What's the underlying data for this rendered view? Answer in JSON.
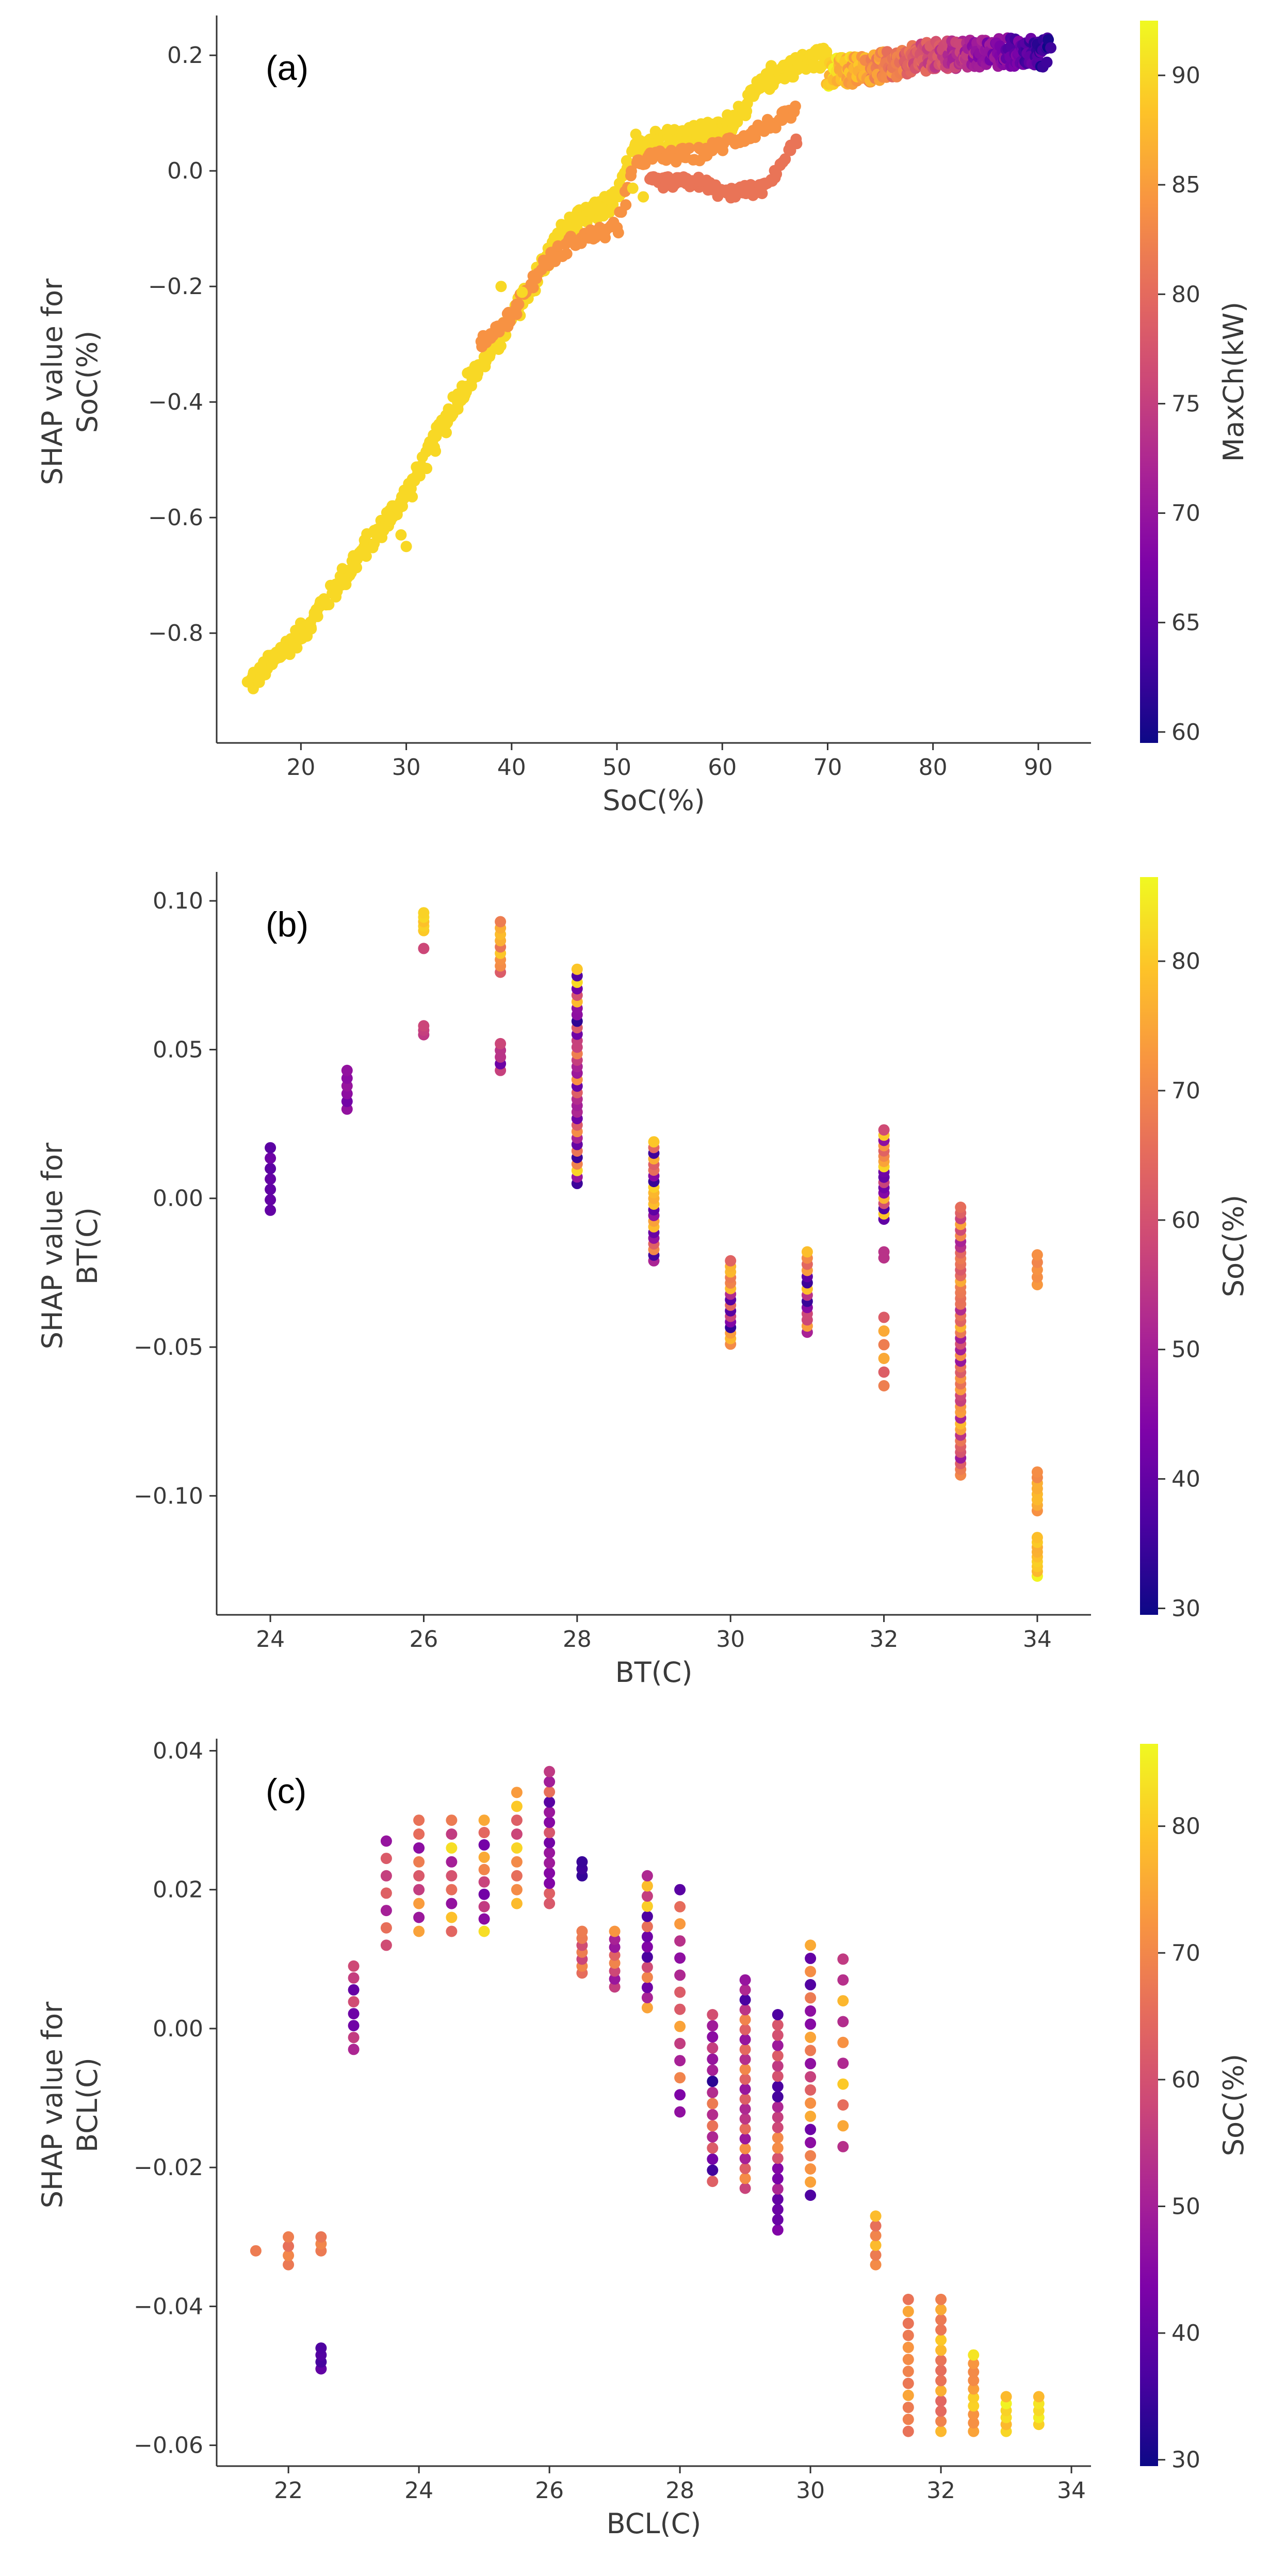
{
  "chart_data": [
    {
      "type": "scatter",
      "panel_label": "(a)",
      "xlabel": "SoC(%)",
      "ylabel_lines": [
        "SHAP value for",
        "SoC(%)"
      ],
      "colorbar_label": "MaxCh(kW)",
      "xlim": [
        12,
        95
      ],
      "ylim": [
        -0.99,
        0.26
      ],
      "xticks": [
        20,
        30,
        40,
        50,
        60,
        70,
        80,
        90
      ],
      "xtick_labels": [
        "20",
        "30",
        "40",
        "50",
        "60",
        "70",
        "80",
        "90"
      ],
      "yticks": [
        -0.8,
        -0.6,
        -0.4,
        -0.2,
        0.0,
        0.2
      ],
      "ytick_labels": [
        "−0.8",
        "−0.6",
        "−0.4",
        "−0.2",
        "0.0",
        "0.2"
      ],
      "clim": [
        59.5,
        92.5
      ],
      "cticks": [
        60,
        65,
        70,
        75,
        80,
        85,
        90
      ],
      "ctick_labels": [
        "60",
        "65",
        "70",
        "75",
        "80",
        "85",
        "90"
      ],
      "point_groups": [
        {
          "kind": "line",
          "x_range": [
            15,
            70
          ],
          "knots": [
            [
              15,
              -0.89
            ],
            [
              20,
              -0.8
            ],
            [
              25,
              -0.68
            ],
            [
              30,
              -0.56
            ],
            [
              35,
              -0.39
            ],
            [
              40,
              -0.26
            ],
            [
              45,
              -0.1
            ],
            [
              50,
              -0.05
            ],
            [
              52,
              0.05
            ],
            [
              60,
              0.07
            ],
            [
              65,
              0.17
            ],
            [
              70,
              0.2
            ]
          ],
          "c": 90,
          "jitter": 0.018,
          "n": 520
        },
        {
          "kind": "line",
          "x_range": [
            70,
            91
          ],
          "knots": [
            [
              70,
              0.17
            ],
            [
              75,
              0.18
            ],
            [
              80,
              0.2
            ],
            [
              85,
              0.205
            ],
            [
              91,
              0.205
            ]
          ],
          "c_range": [
            90,
            62
          ],
          "jitter": 0.025,
          "n": 360
        },
        {
          "kind": "line",
          "x_range": [
            37,
            67
          ],
          "knots": [
            [
              37,
              -0.3
            ],
            [
              40,
              -0.25
            ],
            [
              43,
              -0.16
            ],
            [
              46,
              -0.12
            ],
            [
              50,
              -0.1
            ],
            [
              52,
              0.02
            ],
            [
              58,
              0.03
            ],
            [
              62,
              0.06
            ],
            [
              67,
              0.1
            ]
          ],
          "c": 84,
          "jitter": 0.012,
          "n": 160
        },
        {
          "kind": "line",
          "x_range": [
            53,
            67
          ],
          "knots": [
            [
              53,
              -0.02
            ],
            [
              58,
              -0.02
            ],
            [
              60,
              -0.04
            ],
            [
              64,
              -0.03
            ],
            [
              67,
              0.05
            ]
          ],
          "c": 81,
          "jitter": 0.01,
          "n": 90
        },
        {
          "kind": "points",
          "points": [
            [
              28.5,
              -0.6
            ],
            [
              29.5,
              -0.63
            ],
            [
              30,
              -0.65
            ],
            [
              39,
              -0.2
            ],
            [
              41,
              -0.21
            ],
            [
              52.5,
              -0.045
            ],
            [
              51.5,
              -0.03
            ]
          ],
          "c": 90
        }
      ]
    },
    {
      "type": "scatter",
      "panel_label": "(b)",
      "xlabel": "BT(C)",
      "ylabel_lines": [
        "SHAP value for",
        "BT(C)"
      ],
      "colorbar_label": "SoC(%)",
      "xlim": [
        23.3,
        34.7
      ],
      "ylim": [
        -0.14,
        0.108
      ],
      "xticks": [
        24,
        26,
        28,
        30,
        32,
        34
      ],
      "xtick_labels": [
        "24",
        "26",
        "28",
        "30",
        "32",
        "34"
      ],
      "yticks": [
        -0.1,
        -0.05,
        0.0,
        0.05,
        0.1
      ],
      "ytick_labels": [
        "−0.10",
        "−0.05",
        "0.00",
        "0.05",
        "0.10"
      ],
      "clim": [
        29.5,
        86.5
      ],
      "cticks": [
        30,
        40,
        50,
        60,
        70,
        80
      ],
      "ctick_labels": [
        "30",
        "40",
        "50",
        "60",
        "70",
        "80"
      ],
      "point_groups": [
        {
          "kind": "column",
          "x": 24,
          "y_range": [
            -0.004,
            0.017
          ],
          "c_range": [
            38,
            42
          ],
          "n": 7
        },
        {
          "kind": "column",
          "x": 25,
          "y_range": [
            0.03,
            0.043
          ],
          "c_range": [
            42,
            48
          ],
          "n": 6
        },
        {
          "kind": "column",
          "x": 26,
          "y_range": [
            0.09,
            0.096
          ],
          "c_range": [
            75,
            84
          ],
          "n": 5
        },
        {
          "kind": "column",
          "x": 26,
          "y_range": [
            0.055,
            0.058
          ],
          "c_range": [
            55,
            58
          ],
          "n": 3
        },
        {
          "kind": "points",
          "points": [
            [
              26,
              0.084
            ]
          ],
          "c": 58
        },
        {
          "kind": "column",
          "x": 27,
          "y_range": [
            0.076,
            0.093
          ],
          "c_range": [
            60,
            84
          ],
          "n": 9
        },
        {
          "kind": "column",
          "x": 27,
          "y_range": [
            0.043,
            0.052
          ],
          "c_range": [
            40,
            58
          ],
          "n": 5
        },
        {
          "kind": "column",
          "x": 28,
          "y_range": [
            0.005,
            0.077
          ],
          "c_range": [
            32,
            84
          ],
          "n": 34
        },
        {
          "kind": "column",
          "x": 29,
          "y_range": [
            -0.021,
            0.019
          ],
          "c_range": [
            34,
            82
          ],
          "n": 22
        },
        {
          "kind": "column",
          "x": 30,
          "y_range": [
            -0.049,
            -0.021
          ],
          "c_range": [
            32,
            80
          ],
          "n": 16
        },
        {
          "kind": "column",
          "x": 31,
          "y_range": [
            -0.045,
            -0.018
          ],
          "c_range": [
            34,
            80
          ],
          "n": 14
        },
        {
          "kind": "column",
          "x": 32,
          "y_range": [
            -0.007,
            0.023
          ],
          "c_range": [
            32,
            82
          ],
          "n": 18
        },
        {
          "kind": "column",
          "x": 32,
          "y_range": [
            -0.063,
            -0.04
          ],
          "c_range": [
            58,
            76
          ],
          "n": 6
        },
        {
          "kind": "points",
          "points": [
            [
              32,
              -0.018
            ],
            [
              32,
              -0.02
            ]
          ],
          "c": 54
        },
        {
          "kind": "column",
          "x": 33,
          "y_range": [
            -0.093,
            -0.003
          ],
          "c_range": [
            46,
            78
          ],
          "n": 48
        },
        {
          "kind": "column",
          "x": 34,
          "y_range": [
            -0.029,
            -0.019
          ],
          "c_range": [
            68,
            76
          ],
          "n": 5
        },
        {
          "kind": "column",
          "x": 34,
          "y_range": [
            -0.105,
            -0.092
          ],
          "c_range": [
            70,
            80
          ],
          "n": 8
        },
        {
          "kind": "column",
          "x": 34,
          "y_range": [
            -0.127,
            -0.114
          ],
          "c_range": [
            76,
            86
          ],
          "n": 9
        }
      ]
    },
    {
      "type": "scatter",
      "panel_label": "(c)",
      "xlabel": "BCL(C)",
      "ylabel_lines": [
        "SHAP value for",
        "BCL(C)"
      ],
      "colorbar_label": "SoC(%)",
      "xlim": [
        20.9,
        34.3
      ],
      "ylim": [
        -0.063,
        0.041
      ],
      "xticks": [
        22,
        24,
        26,
        28,
        30,
        32,
        34
      ],
      "xtick_labels": [
        "22",
        "24",
        "26",
        "28",
        "30",
        "32",
        "34"
      ],
      "yticks": [
        -0.06,
        -0.04,
        -0.02,
        0.0,
        0.02,
        0.04
      ],
      "ytick_labels": [
        "−0.06",
        "−0.04",
        "−0.02",
        "0.00",
        "0.02",
        "0.04"
      ],
      "clim": [
        29.5,
        86.5
      ],
      "cticks": [
        30,
        40,
        50,
        60,
        70,
        80
      ],
      "ctick_labels": [
        "30",
        "40",
        "50",
        "60",
        "70",
        "80"
      ],
      "point_groups": [
        {
          "kind": "points",
          "points": [
            [
              21.5,
              -0.032
            ]
          ],
          "c": 68
        },
        {
          "kind": "column",
          "x": 22,
          "y_range": [
            -0.034,
            -0.03
          ],
          "c_range": [
            66,
            70
          ],
          "n": 4
        },
        {
          "kind": "column",
          "x": 22.5,
          "y_range": [
            -0.032,
            -0.03
          ],
          "c_range": [
            66,
            70
          ],
          "n": 3
        },
        {
          "kind": "column",
          "x": 22.5,
          "y_range": [
            -0.049,
            -0.046
          ],
          "c_range": [
            36,
            40
          ],
          "n": 4
        },
        {
          "kind": "column",
          "x": 23,
          "y_range": [
            -0.003,
            0.009
          ],
          "c_range": [
            40,
            66
          ],
          "n": 8
        },
        {
          "kind": "column",
          "x": 23.5,
          "y_range": [
            0.012,
            0.027
          ],
          "c_range": [
            44,
            82
          ],
          "n": 7
        },
        {
          "kind": "column",
          "x": 24,
          "y_range": [
            0.014,
            0.03
          ],
          "c_range": [
            46,
            84
          ],
          "n": 9
        },
        {
          "kind": "column",
          "x": 24.5,
          "y_range": [
            0.014,
            0.03
          ],
          "c_range": [
            46,
            84
          ],
          "n": 9
        },
        {
          "kind": "column",
          "x": 25,
          "y_range": [
            0.014,
            0.03
          ],
          "c_range": [
            38,
            84
          ],
          "n": 10
        },
        {
          "kind": "column",
          "x": 25.5,
          "y_range": [
            0.018,
            0.034
          ],
          "c_range": [
            50,
            82
          ],
          "n": 9
        },
        {
          "kind": "column",
          "x": 26,
          "y_range": [
            0.018,
            0.037
          ],
          "c_range": [
            32,
            66
          ],
          "n": 14
        },
        {
          "kind": "column",
          "x": 26.5,
          "y_range": [
            0.008,
            0.014
          ],
          "c_range": [
            56,
            74
          ],
          "n": 7
        },
        {
          "kind": "column",
          "x": 26.5,
          "y_range": [
            0.022,
            0.024
          ],
          "c_range": [
            32,
            36
          ],
          "n": 3
        },
        {
          "kind": "column",
          "x": 27,
          "y_range": [
            0.006,
            0.014
          ],
          "c_range": [
            46,
            76
          ],
          "n": 8
        },
        {
          "kind": "column",
          "x": 27.5,
          "y_range": [
            0.003,
            0.022
          ],
          "c_range": [
            34,
            82
          ],
          "n": 14
        },
        {
          "kind": "column",
          "x": 28,
          "y_range": [
            -0.012,
            0.02
          ],
          "c_range": [
            38,
            84
          ],
          "n": 14
        },
        {
          "kind": "column",
          "x": 28.5,
          "y_range": [
            -0.022,
            0.002
          ],
          "c_range": [
            32,
            70
          ],
          "n": 16
        },
        {
          "kind": "column",
          "x": 29,
          "y_range": [
            -0.023,
            0.007
          ],
          "c_range": [
            36,
            72
          ],
          "n": 22
        },
        {
          "kind": "column",
          "x": 29.5,
          "y_range": [
            -0.029,
            0.002
          ],
          "c_range": [
            32,
            74
          ],
          "n": 22
        },
        {
          "kind": "column",
          "x": 30,
          "y_range": [
            -0.024,
            0.012
          ],
          "c_range": [
            36,
            78
          ],
          "n": 20
        },
        {
          "kind": "column",
          "x": 30.5,
          "y_range": [
            -0.017,
            0.01
          ],
          "c_range": [
            52,
            82
          ],
          "n": 10
        },
        {
          "kind": "column",
          "x": 31,
          "y_range": [
            -0.034,
            -0.027
          ],
          "c_range": [
            60,
            80
          ],
          "n": 6
        },
        {
          "kind": "column",
          "x": 31.5,
          "y_range": [
            -0.058,
            -0.039
          ],
          "c_range": [
            66,
            76
          ],
          "n": 12
        },
        {
          "kind": "column",
          "x": 32,
          "y_range": [
            -0.058,
            -0.039
          ],
          "c_range": [
            64,
            80
          ],
          "n": 14
        },
        {
          "kind": "column",
          "x": 32.5,
          "y_range": [
            -0.058,
            -0.047
          ],
          "c_range": [
            68,
            84
          ],
          "n": 10
        },
        {
          "kind": "column",
          "x": 33,
          "y_range": [
            -0.058,
            -0.053
          ],
          "c_range": [
            76,
            86
          ],
          "n": 6
        },
        {
          "kind": "column",
          "x": 33.5,
          "y_range": [
            -0.057,
            -0.053
          ],
          "c_range": [
            76,
            86
          ],
          "n": 5
        }
      ]
    }
  ]
}
